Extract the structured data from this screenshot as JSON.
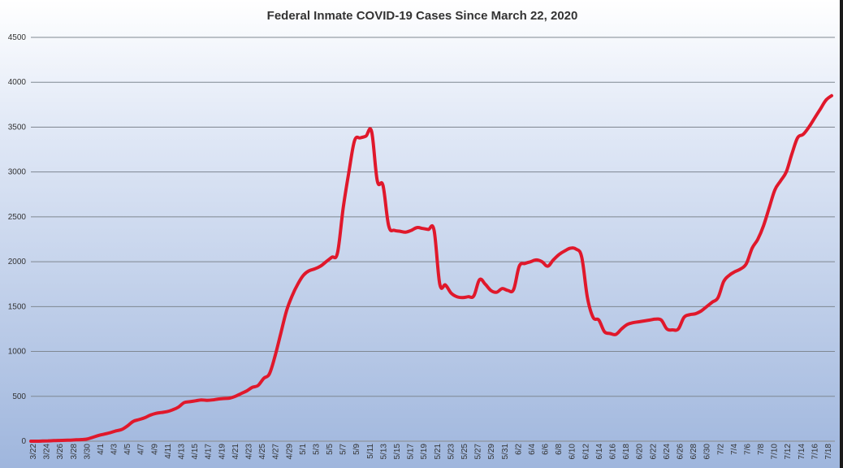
{
  "chart_data": {
    "type": "line",
    "title": "Federal Inmate COVID-19 Cases Since March 22, 2020",
    "xlabel": "",
    "ylabel": "",
    "ylim": [
      0,
      4500
    ],
    "y_ticks": [
      0,
      500,
      1000,
      1500,
      2000,
      2500,
      3000,
      3500,
      4000,
      4500
    ],
    "grid": true,
    "legend": "none",
    "x_tick_labels": [
      "3/22",
      "3/24",
      "3/26",
      "3/28",
      "3/30",
      "4/1",
      "4/3",
      "4/5",
      "4/7",
      "4/9",
      "4/11",
      "4/13",
      "4/15",
      "4/17",
      "4/19",
      "4/21",
      "4/23",
      "4/25",
      "4/27",
      "4/29",
      "5/1",
      "5/3",
      "5/5",
      "5/7",
      "5/9",
      "5/11",
      "5/13",
      "5/15",
      "5/17",
      "5/19",
      "5/21",
      "5/23",
      "5/25",
      "5/27",
      "5/29",
      "5/31",
      "6/2",
      "6/4",
      "6/6",
      "6/8",
      "6/10",
      "6/12",
      "6/14",
      "6/16",
      "6/18",
      "6/20",
      "6/22",
      "6/24",
      "6/26",
      "6/28",
      "6/30",
      "7/2",
      "7/4",
      "7/6",
      "7/8",
      "7/10",
      "7/12",
      "7/14",
      "7/16",
      "7/18"
    ],
    "series": [
      {
        "values": [
          0,
          0,
          2,
          4,
          6,
          8,
          10,
          12,
          15,
          18,
          25,
          45,
          65,
          80,
          95,
          115,
          130,
          170,
          220,
          240,
          260,
          290,
          310,
          320,
          330,
          350,
          380,
          430,
          440,
          450,
          460,
          455,
          460,
          470,
          475,
          480,
          500,
          530,
          560,
          600,
          620,
          700,
          750,
          950,
          1200,
          1450,
          1620,
          1750,
          1850,
          1900,
          1920,
          1950,
          2000,
          2050,
          2100,
          2600,
          3000,
          3350,
          3380,
          3400,
          3450,
          2900,
          2850,
          2400,
          2350,
          2340,
          2330,
          2350,
          2380,
          2370,
          2360,
          2350,
          1750,
          1740,
          1650,
          1610,
          1600,
          1610,
          1620,
          1800,
          1750,
          1680,
          1660,
          1700,
          1680,
          1690,
          1950,
          1980,
          2000,
          2020,
          2000,
          1950,
          2020,
          2080,
          2120,
          2150,
          2140,
          2050,
          1600,
          1380,
          1350,
          1220,
          1200,
          1190,
          1250,
          1300,
          1320,
          1330,
          1340,
          1350,
          1360,
          1350,
          1250,
          1240,
          1250,
          1380,
          1410,
          1420,
          1450,
          1500,
          1550,
          1600,
          1780,
          1850,
          1890,
          1920,
          1980,
          2150,
          2250,
          2400,
          2600,
          2800,
          2900,
          3000,
          3200,
          3380,
          3420,
          3500,
          3600,
          3700,
          3800,
          3850
        ],
        "color": "#e0182b"
      }
    ]
  }
}
